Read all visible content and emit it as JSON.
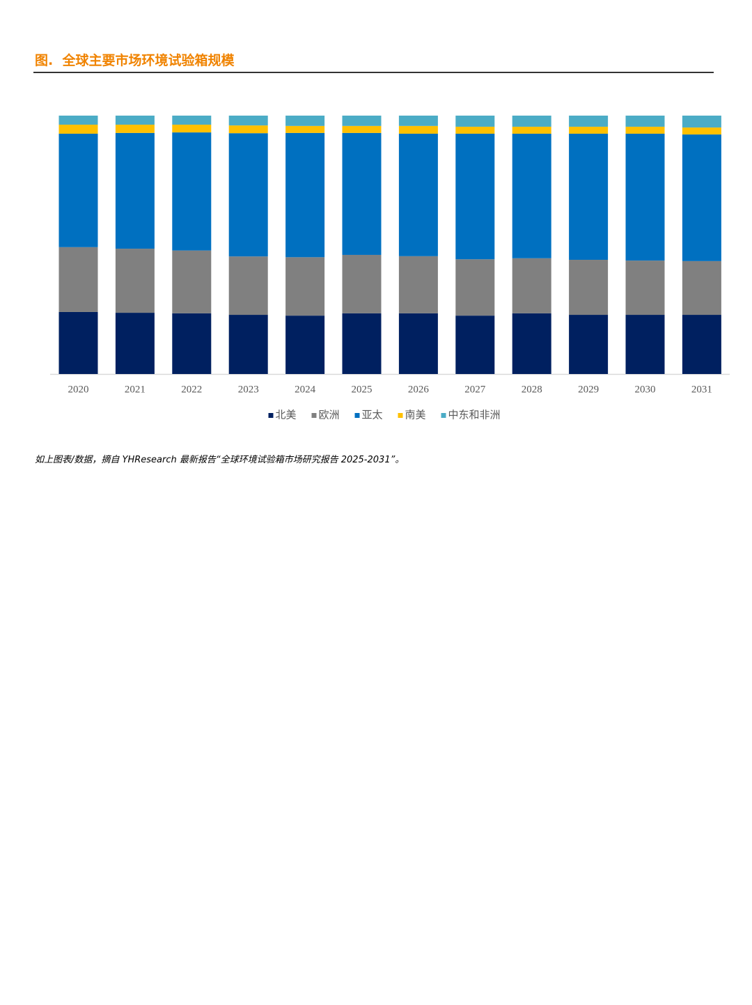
{
  "title": "图.  全球主要市场环境试验箱规模",
  "chart_data": {
    "type": "stacked-bar",
    "categories": [
      "2020",
      "2021",
      "2022",
      "2023",
      "2024",
      "2025",
      "2026",
      "2027",
      "2028",
      "2029",
      "2030",
      "2031"
    ],
    "ylim": [
      0,
      100
    ],
    "series": [
      {
        "name": "北美",
        "color": "#002060",
        "values": [
          24.0,
          23.7,
          23.5,
          22.9,
          22.6,
          23.5,
          23.5,
          22.6,
          23.5,
          22.9,
          22.9,
          22.9
        ]
      },
      {
        "name": "欧洲",
        "color": "#808080",
        "values": [
          25.1,
          24.8,
          24.3,
          22.6,
          22.6,
          22.6,
          22.1,
          21.8,
          21.3,
          21.3,
          21.0,
          20.8
        ]
      },
      {
        "name": "亚太",
        "color": "#0070c0",
        "values": [
          43.9,
          44.8,
          45.7,
          47.7,
          48.1,
          47.2,
          47.4,
          48.6,
          48.2,
          48.8,
          49.1,
          49.0
        ]
      },
      {
        "name": "南美",
        "color": "#ffc000",
        "values": [
          3.5,
          3.2,
          3.0,
          3.0,
          2.7,
          2.7,
          3.0,
          2.7,
          2.7,
          2.7,
          2.7,
          2.7
        ]
      },
      {
        "name": "中东和非洲",
        "color": "#4bacc6",
        "values": [
          3.5,
          3.5,
          3.5,
          3.8,
          4.0,
          4.0,
          4.0,
          4.3,
          4.3,
          4.3,
          4.3,
          4.6
        ]
      }
    ]
  },
  "footnote": "如上图表/数据，摘自 YHResearch 最新报告“全球环境试验箱市场研究报告 2025-2031”。"
}
